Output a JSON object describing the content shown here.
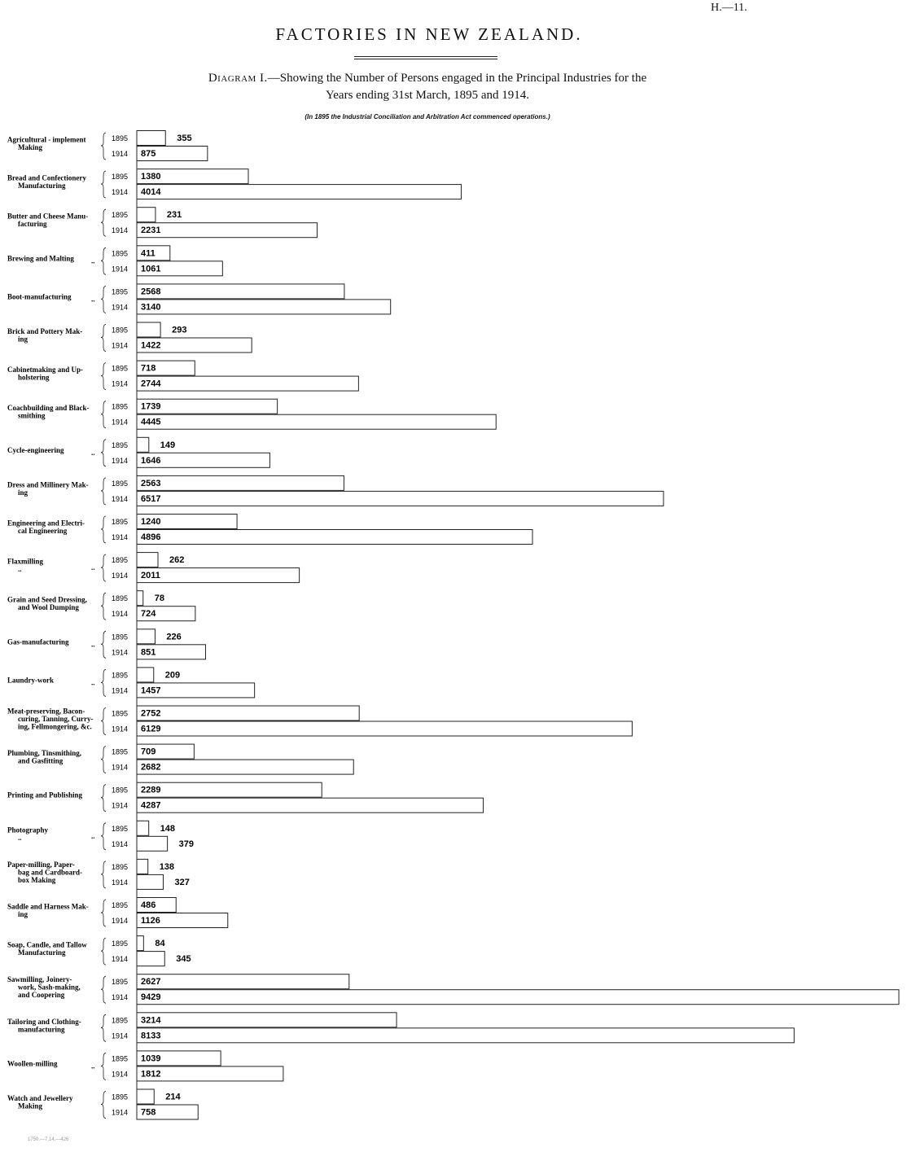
{
  "header": {
    "page_ref": "H.—11.",
    "title": "FACTORIES IN NEW ZEALAND.",
    "subtitle_prefix": "Diagram I.",
    "subtitle_line1": "—Showing the Number of Persons engaged in the Principal Industries for the",
    "subtitle_line2": "Years ending 31st March, 1895 and 1914.",
    "note": "(In 1895 the Industrial Conciliation and Arbitration Act commenced operations.)",
    "footer": "1750.—7.14.—426"
  },
  "chart_data": {
    "type": "bar",
    "orientation": "horizontal",
    "title": "FACTORIES IN NEW ZEALAND.",
    "xlim": [
      0,
      9429
    ],
    "grid": false,
    "categories": [
      {
        "label": [
          "Agricultural - implement",
          "Making"
        ],
        "dots": "",
        "values": [
          355,
          875
        ]
      },
      {
        "label": [
          "Bread and Confectionery",
          "Manufacturing"
        ],
        "dots": "",
        "values": [
          1380,
          4014
        ]
      },
      {
        "label": [
          "Butter and Cheese Manu-",
          "facturing"
        ],
        "dots": "",
        "values": [
          231,
          2231
        ]
      },
      {
        "label": [
          "Brewing and Malting"
        ],
        "dots": "..",
        "values": [
          411,
          1061
        ]
      },
      {
        "label": [
          "Boot-manufacturing"
        ],
        "dots": "..",
        "values": [
          2568,
          3140
        ]
      },
      {
        "label": [
          "Brick and Pottery Mak-",
          "ing"
        ],
        "dots": "",
        "values": [
          293,
          1422
        ]
      },
      {
        "label": [
          "Cabinetmaking and Up-",
          "holstering"
        ],
        "dots": "",
        "values": [
          718,
          2744
        ]
      },
      {
        "label": [
          "Coachbuilding and Black-",
          "smithing"
        ],
        "dots": "",
        "values": [
          1739,
          4445
        ]
      },
      {
        "label": [
          "Cycle-engineering"
        ],
        "dots": "..",
        "values": [
          149,
          1646
        ]
      },
      {
        "label": [
          "Dress and Millinery Mak-",
          "ing"
        ],
        "dots": "",
        "values": [
          2563,
          6517
        ]
      },
      {
        "label": [
          "Engineering and Electri-",
          "cal Engineering"
        ],
        "dots": "",
        "values": [
          1240,
          4896
        ]
      },
      {
        "label": [
          "Flaxmilling",
          ".."
        ],
        "dots": "..",
        "values": [
          262,
          2011
        ]
      },
      {
        "label": [
          "Grain and Seed Dressing,",
          "and Wool Dumping"
        ],
        "dots": "",
        "values": [
          78,
          724
        ]
      },
      {
        "label": [
          "Gas-manufacturing"
        ],
        "dots": "..",
        "values": [
          226,
          851
        ]
      },
      {
        "label": [
          "Laundry-work"
        ],
        "dots": "..",
        "values": [
          209,
          1457
        ]
      },
      {
        "label": [
          "Meat-preserving, Bacon-",
          "curing, Tanning, Curry-",
          "ing, Fellmongering, &c."
        ],
        "dots": "",
        "values": [
          2752,
          6129
        ]
      },
      {
        "label": [
          "Plumbing, Tinsmithing,",
          "and Gasfitting"
        ],
        "dots": "",
        "values": [
          709,
          2682
        ]
      },
      {
        "label": [
          "Printing and Publishing"
        ],
        "dots": "",
        "values": [
          2289,
          4287
        ]
      },
      {
        "label": [
          "Photography",
          ".."
        ],
        "dots": "..",
        "values": [
          148,
          379
        ]
      },
      {
        "label": [
          "Paper-milling, Paper-",
          "bag and Cardboard-",
          "box Making"
        ],
        "dots": "",
        "values": [
          138,
          327
        ]
      },
      {
        "label": [
          "Saddle and Harness Mak-",
          "ing"
        ],
        "dots": "",
        "values": [
          486,
          1126
        ]
      },
      {
        "label": [
          "Soap, Candle, and Tallow",
          "Manufacturing"
        ],
        "dots": "",
        "values": [
          84,
          345
        ]
      },
      {
        "label": [
          "Sawmilling, Joinery-",
          "work, Sash-making,",
          "and Coopering"
        ],
        "dots": "",
        "values": [
          2627,
          9429
        ]
      },
      {
        "label": [
          "Tailoring and Clothing-",
          "manufacturing"
        ],
        "dots": "",
        "values": [
          3214,
          8133
        ]
      },
      {
        "label": [
          "Woollen-milling"
        ],
        "dots": "..",
        "values": [
          1039,
          1812
        ]
      },
      {
        "label": [
          "Watch and Jewellery",
          "Making"
        ],
        "dots": "",
        "values": [
          214,
          758
        ]
      }
    ],
    "years": [
      "1895",
      "1914"
    ]
  }
}
